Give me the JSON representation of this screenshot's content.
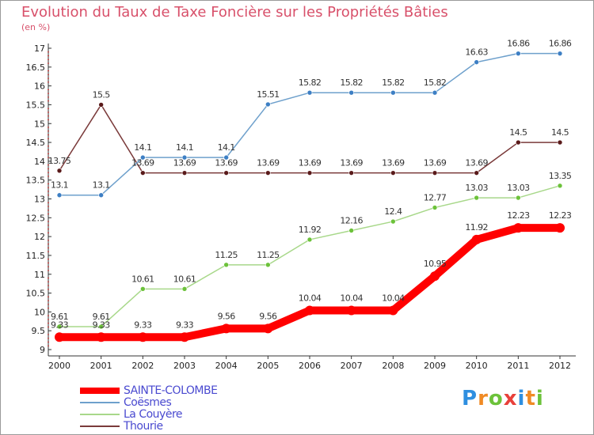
{
  "header": {
    "title": "Evolution du Taux de Taxe Foncière sur les Propriétés Bâties",
    "unit": "(en %)"
  },
  "chart_data": {
    "type": "line",
    "title": "Evolution du Taux de Taxe Foncière sur les Propriétés Bâties",
    "ylabel": "(en %)",
    "xlabel": "",
    "ylim": [
      9,
      17
    ],
    "yticks": [
      "9",
      "9.5",
      "10",
      "10.5",
      "11",
      "11.5",
      "12",
      "12.5",
      "13",
      "13.5",
      "14",
      "14.5",
      "15",
      "15.5",
      "16",
      "16.5",
      "17"
    ],
    "x": [
      "2000",
      "2001",
      "2002",
      "2003",
      "2004",
      "2005",
      "2006",
      "2007",
      "2008",
      "2009",
      "2010",
      "2011",
      "2012"
    ],
    "series": [
      {
        "name": "SAINTE-COLOMBE",
        "color": "#ff0000",
        "point_color": "#ff0000",
        "values": [
          9.33,
          9.33,
          9.33,
          9.33,
          9.56,
          9.56,
          10.04,
          10.04,
          10.04,
          10.95,
          11.92,
          12.23,
          12.23
        ],
        "labels": [
          "9.33",
          "9.33",
          "9.33",
          "9.33",
          "9.56",
          "9.56",
          "10.04",
          "10.04",
          "10.04",
          "10.95",
          "11.92",
          "12.23",
          "12.23"
        ]
      },
      {
        "name": "Coësmes",
        "color": "#6ea0cc",
        "point_color": "#3d7fc4",
        "values": [
          13.1,
          13.1,
          14.1,
          14.1,
          14.1,
          15.51,
          15.82,
          15.82,
          15.82,
          15.82,
          16.63,
          16.86,
          16.86
        ],
        "labels": [
          "13.1",
          "13.1",
          "14.1",
          "14.1",
          "14.1",
          "15.51",
          "15.82",
          "15.82",
          "15.82",
          "15.82",
          "16.63",
          "16.86",
          "16.86"
        ]
      },
      {
        "name": "La Couyère",
        "color": "#a8d88a",
        "point_color": "#6cc23a",
        "values": [
          9.61,
          9.61,
          10.61,
          10.61,
          11.25,
          11.25,
          11.92,
          12.16,
          12.4,
          12.77,
          13.03,
          13.03,
          13.35
        ],
        "labels": [
          "9.61",
          "9.61",
          "10.61",
          "10.61",
          "11.25",
          "11.25",
          "11.92",
          "12.16",
          "12.4",
          "12.77",
          "13.03",
          "13.03",
          "13.35"
        ]
      },
      {
        "name": "Thourie",
        "color": "#7a3a3a",
        "point_color": "#5a1a1a",
        "values": [
          13.75,
          15.5,
          13.69,
          13.69,
          13.69,
          13.69,
          13.69,
          13.69,
          13.69,
          13.69,
          13.69,
          14.5,
          14.5
        ],
        "labels": [
          "13.75",
          "15.5",
          "13.69",
          "13.69",
          "13.69",
          "13.69",
          "13.69",
          "13.69",
          "13.69",
          "13.69",
          "13.69",
          "14.5",
          "14.5"
        ]
      }
    ],
    "legend": {
      "placement": "bottom-left",
      "items": [
        "SAINTE-COLOMBE",
        "Coësmes",
        "La Couyère",
        "Thourie"
      ]
    },
    "grid": false
  },
  "branding": {
    "logo_letters": [
      "P",
      "r",
      "o",
      "x",
      "i",
      "t",
      "i"
    ],
    "logo_colors": [
      "#2f8fe0",
      "#f08a24",
      "#6cc23a",
      "#e8403a",
      "#2f8fe0",
      "#f08a24",
      "#6cc23a"
    ]
  }
}
